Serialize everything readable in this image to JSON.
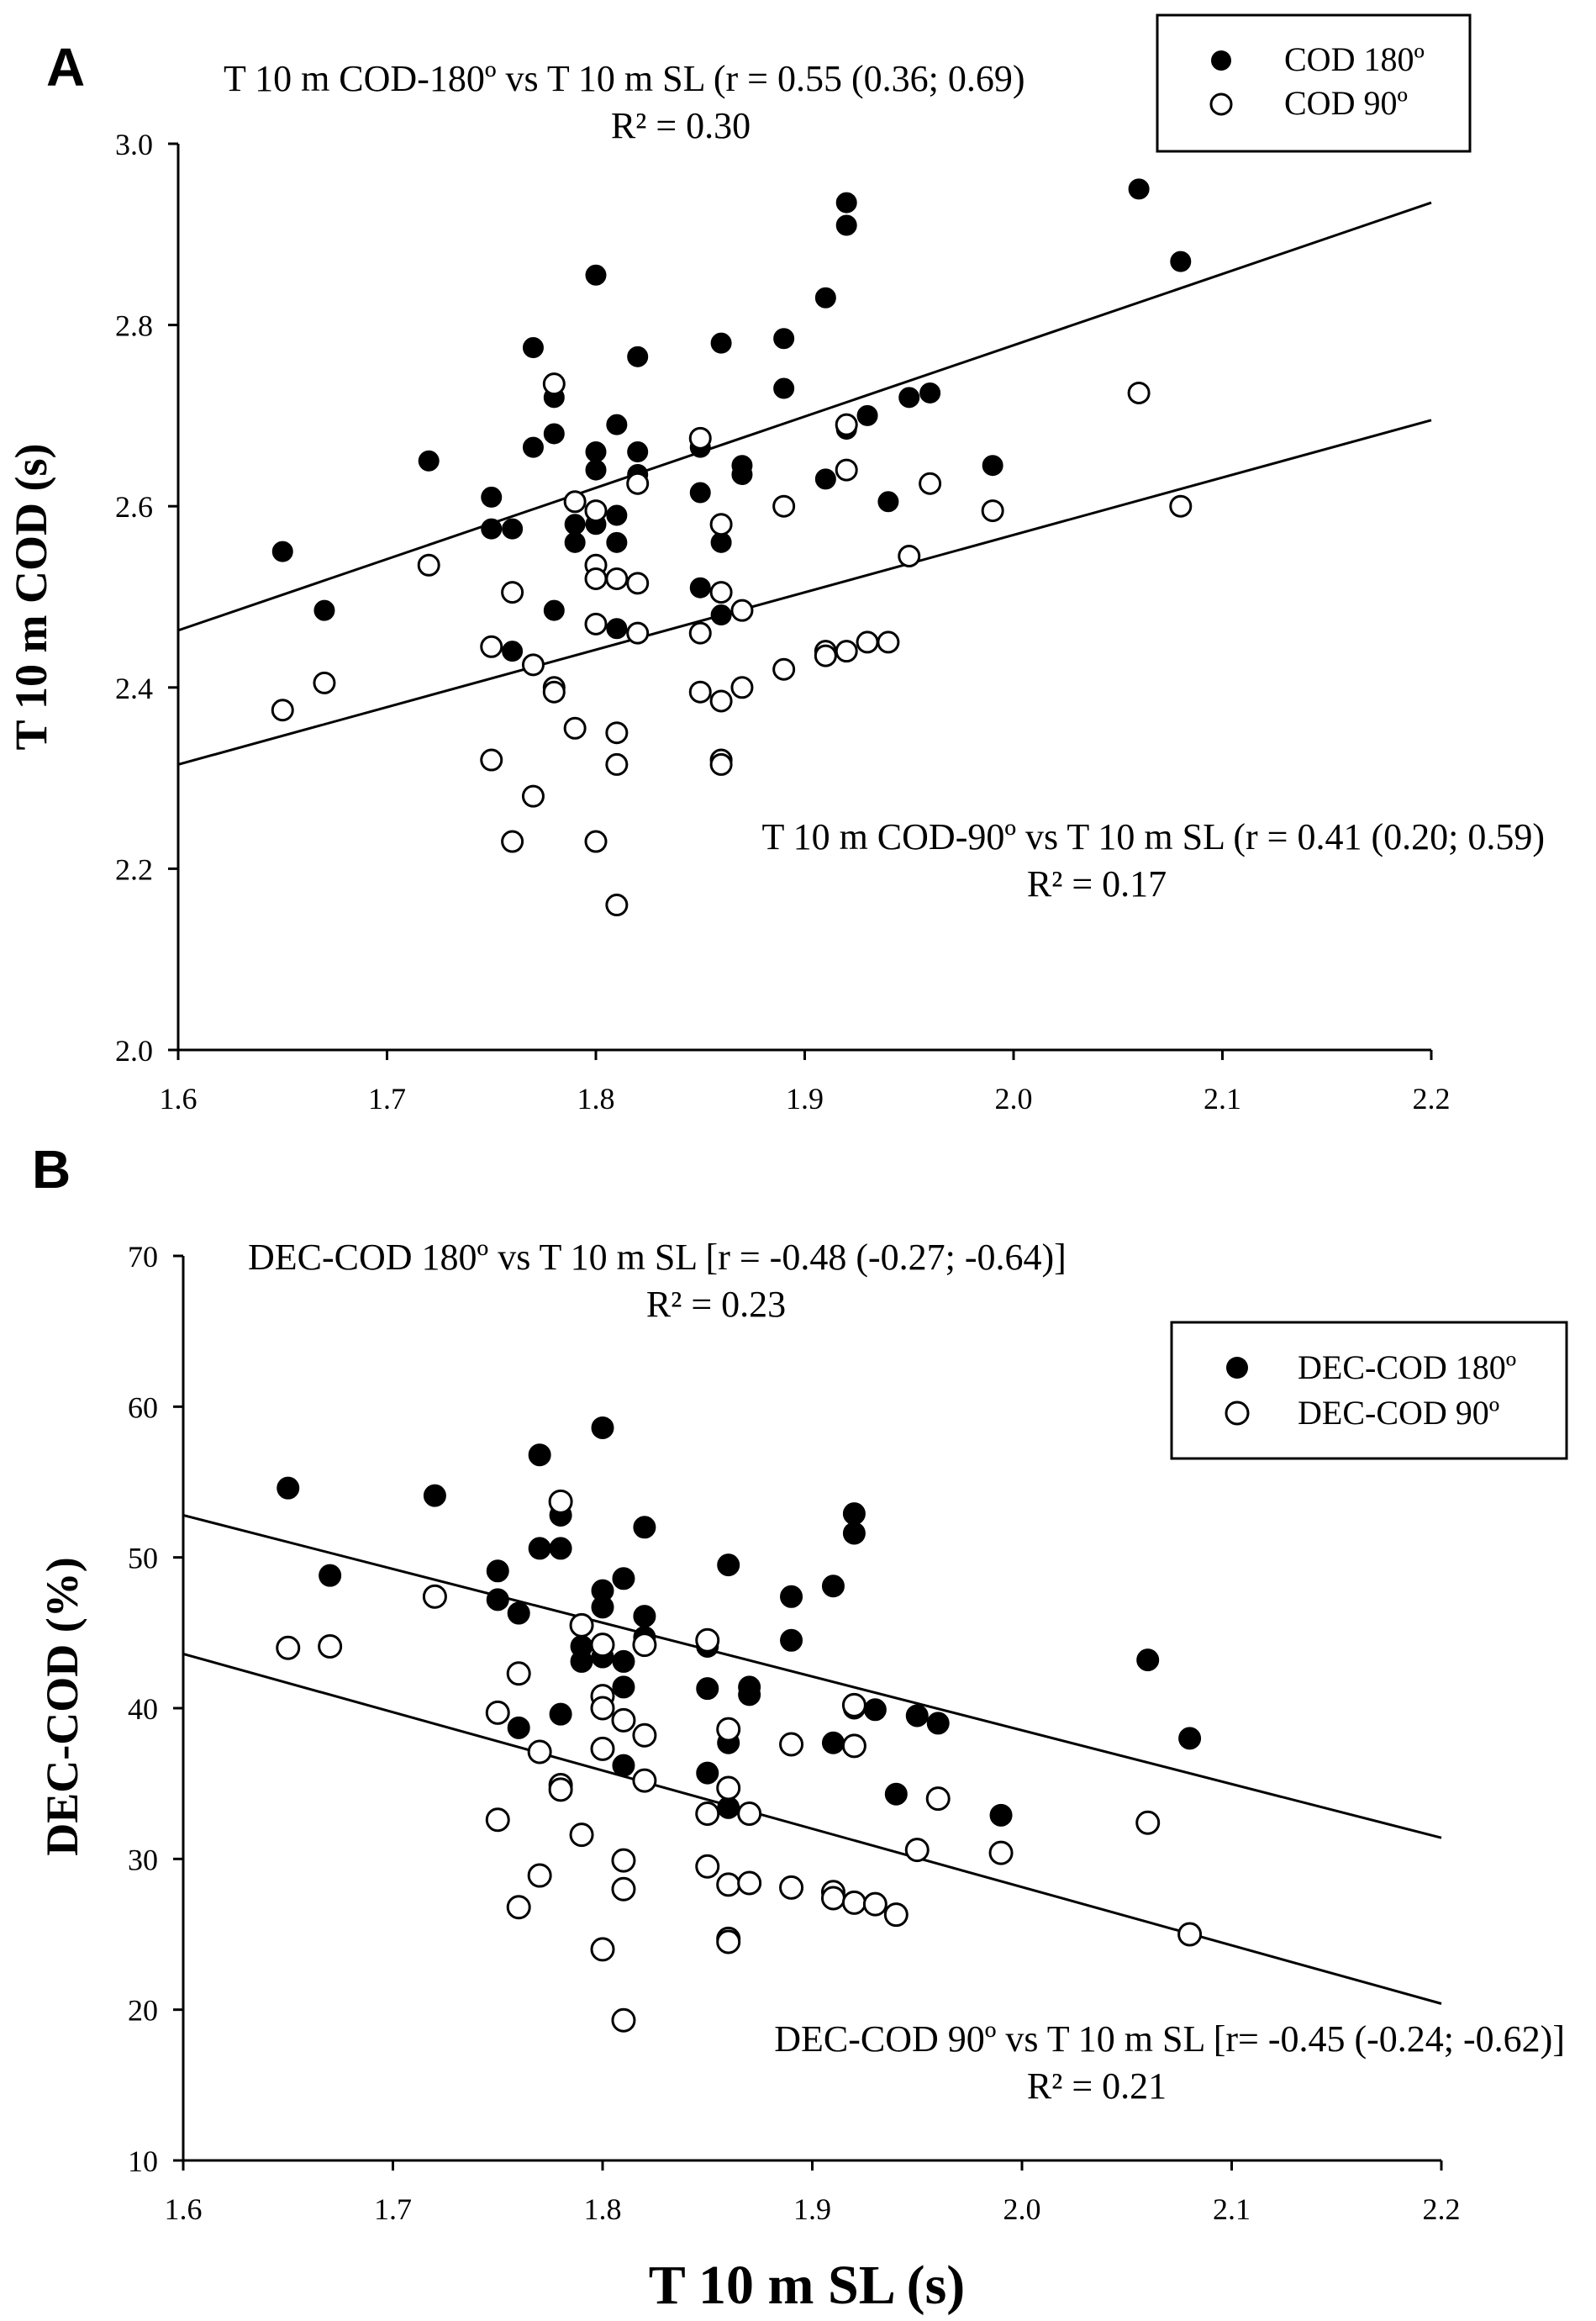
{
  "figure": {
    "x_title": "T 10 m SL (s)",
    "colors": {
      "ink": "#000000",
      "paper": "#ffffff"
    }
  },
  "chart_data": [
    {
      "panel_label": "A",
      "type": "scatter",
      "ylabel": "T 10 m COD (s)",
      "xlabel": "",
      "xlim": [
        1.6,
        2.2
      ],
      "ylim": [
        2.0,
        3.0
      ],
      "x_ticks": [
        "1.6",
        "1.7",
        "1.8",
        "1.9",
        "2.0",
        "2.1",
        "2.2"
      ],
      "y_ticks": [
        "2.0",
        "2.2",
        "2.4",
        "2.6",
        "2.8",
        "3.0"
      ],
      "legend_position": "top-right",
      "annotations": {
        "upper_text": "T 10 m COD-180º vs T 10 m SL (r = 0.55 (0.36; 0.69)",
        "upper_r2": "R² = 0.30",
        "lower_text": "T 10 m COD-90º vs T 10 m SL (r = 0.41 (0.20; 0.59)",
        "lower_r2": "R² = 0.17"
      },
      "series": [
        {
          "name": "COD 180º",
          "marker": "filled-circle",
          "fit_line": [
            [
              1.6,
              2.463
            ],
            [
              2.2,
              2.935
            ]
          ],
          "points": [
            [
              1.65,
              2.55
            ],
            [
              1.67,
              2.485
            ],
            [
              1.72,
              2.65
            ],
            [
              1.75,
              2.61
            ],
            [
              1.75,
              2.575
            ],
            [
              1.76,
              2.575
            ],
            [
              1.76,
              2.44
            ],
            [
              1.77,
              2.775
            ],
            [
              1.77,
              2.665
            ],
            [
              1.78,
              2.72
            ],
            [
              1.78,
              2.68
            ],
            [
              1.78,
              2.485
            ],
            [
              1.79,
              2.58
            ],
            [
              1.79,
              2.56
            ],
            [
              1.8,
              2.855
            ],
            [
              1.8,
              2.66
            ],
            [
              1.8,
              2.64
            ],
            [
              1.8,
              2.58
            ],
            [
              1.81,
              2.69
            ],
            [
              1.81,
              2.59
            ],
            [
              1.81,
              2.56
            ],
            [
              1.81,
              2.465
            ],
            [
              1.82,
              2.765
            ],
            [
              1.82,
              2.66
            ],
            [
              1.82,
              2.635
            ],
            [
              1.85,
              2.665
            ],
            [
              1.85,
              2.615
            ],
            [
              1.85,
              2.51
            ],
            [
              1.86,
              2.78
            ],
            [
              1.86,
              2.56
            ],
            [
              1.86,
              2.48
            ],
            [
              1.87,
              2.645
            ],
            [
              1.87,
              2.635
            ],
            [
              1.89,
              2.785
            ],
            [
              1.89,
              2.73
            ],
            [
              1.91,
              2.83
            ],
            [
              1.91,
              2.63
            ],
            [
              1.92,
              2.935
            ],
            [
              1.92,
              2.91
            ],
            [
              1.92,
              2.685
            ],
            [
              1.93,
              2.7
            ],
            [
              1.94,
              2.605
            ],
            [
              1.95,
              2.72
            ],
            [
              1.96,
              2.725
            ],
            [
              1.99,
              2.645
            ],
            [
              2.06,
              2.95
            ],
            [
              2.08,
              2.87
            ]
          ]
        },
        {
          "name": "COD 90º",
          "marker": "open-circle",
          "fit_line": [
            [
              1.6,
              2.315
            ],
            [
              2.2,
              2.695
            ]
          ],
          "points": [
            [
              1.65,
              2.375
            ],
            [
              1.67,
              2.405
            ],
            [
              1.72,
              2.535
            ],
            [
              1.75,
              2.445
            ],
            [
              1.75,
              2.32
            ],
            [
              1.76,
              2.505
            ],
            [
              1.76,
              2.23
            ],
            [
              1.77,
              2.425
            ],
            [
              1.77,
              2.28
            ],
            [
              1.78,
              2.735
            ],
            [
              1.78,
              2.4
            ],
            [
              1.78,
              2.395
            ],
            [
              1.79,
              2.605
            ],
            [
              1.79,
              2.355
            ],
            [
              1.8,
              2.595
            ],
            [
              1.8,
              2.535
            ],
            [
              1.8,
              2.52
            ],
            [
              1.8,
              2.47
            ],
            [
              1.8,
              2.23
            ],
            [
              1.81,
              2.52
            ],
            [
              1.81,
              2.35
            ],
            [
              1.81,
              2.315
            ],
            [
              1.81,
              2.16
            ],
            [
              1.82,
              2.625
            ],
            [
              1.82,
              2.515
            ],
            [
              1.82,
              2.46
            ],
            [
              1.85,
              2.675
            ],
            [
              1.85,
              2.46
            ],
            [
              1.85,
              2.395
            ],
            [
              1.86,
              2.58
            ],
            [
              1.86,
              2.505
            ],
            [
              1.86,
              2.385
            ],
            [
              1.86,
              2.32
            ],
            [
              1.86,
              2.315
            ],
            [
              1.87,
              2.485
            ],
            [
              1.87,
              2.4
            ],
            [
              1.89,
              2.6
            ],
            [
              1.89,
              2.42
            ],
            [
              1.91,
              2.44
            ],
            [
              1.91,
              2.435
            ],
            [
              1.92,
              2.69
            ],
            [
              1.92,
              2.64
            ],
            [
              1.92,
              2.44
            ],
            [
              1.93,
              2.45
            ],
            [
              1.94,
              2.45
            ],
            [
              1.95,
              2.545
            ],
            [
              1.96,
              2.625
            ],
            [
              1.99,
              2.595
            ],
            [
              2.06,
              2.725
            ],
            [
              2.08,
              2.6
            ]
          ]
        }
      ]
    },
    {
      "panel_label": "B",
      "type": "scatter",
      "ylabel": "DEC-COD (%)",
      "xlabel": "T 10 m SL (s)",
      "xlim": [
        1.6,
        2.2
      ],
      "ylim": [
        10,
        70
      ],
      "x_ticks": [
        "1.6",
        "1.7",
        "1.8",
        "1.9",
        "2.0",
        "2.1",
        "2.2"
      ],
      "y_ticks": [
        "10",
        "20",
        "30",
        "40",
        "50",
        "60",
        "70"
      ],
      "legend_position": "upper-right",
      "annotations": {
        "upper_text": "DEC-COD 180º vs T 10 m SL [r = -0.48 (-0.27; -0.64)]",
        "upper_r2": "R² = 0.23",
        "lower_text": "DEC-COD 90º vs T 10 m SL [r= -0.45 (-0.24; -0.62)]",
        "lower_r2": "R² = 0.21"
      },
      "series": [
        {
          "name": "DEC-COD 180º",
          "marker": "filled-circle",
          "fit_line": [
            [
              1.6,
              52.8
            ],
            [
              2.2,
              31.4
            ]
          ],
          "points": [
            [
              1.65,
              54.6
            ],
            [
              1.67,
              48.8
            ],
            [
              1.72,
              54.1
            ],
            [
              1.75,
              49.1
            ],
            [
              1.75,
              47.2
            ],
            [
              1.76,
              46.3
            ],
            [
              1.76,
              38.7
            ],
            [
              1.77,
              56.8
            ],
            [
              1.77,
              50.6
            ],
            [
              1.78,
              52.8
            ],
            [
              1.78,
              50.6
            ],
            [
              1.78,
              39.6
            ],
            [
              1.79,
              44.1
            ],
            [
              1.79,
              43.1
            ],
            [
              1.8,
              58.6
            ],
            [
              1.8,
              47.8
            ],
            [
              1.8,
              46.7
            ],
            [
              1.8,
              43.4
            ],
            [
              1.81,
              48.6
            ],
            [
              1.81,
              43.1
            ],
            [
              1.81,
              41.4
            ],
            [
              1.81,
              36.2
            ],
            [
              1.82,
              52.0
            ],
            [
              1.82,
              46.1
            ],
            [
              1.82,
              44.7
            ],
            [
              1.85,
              44.1
            ],
            [
              1.85,
              41.3
            ],
            [
              1.85,
              35.7
            ],
            [
              1.86,
              49.5
            ],
            [
              1.86,
              37.7
            ],
            [
              1.86,
              33.4
            ],
            [
              1.87,
              41.4
            ],
            [
              1.87,
              40.9
            ],
            [
              1.89,
              47.4
            ],
            [
              1.89,
              44.5
            ],
            [
              1.91,
              48.1
            ],
            [
              1.91,
              37.7
            ],
            [
              1.92,
              52.9
            ],
            [
              1.92,
              51.6
            ],
            [
              1.92,
              40.0
            ],
            [
              1.93,
              39.9
            ],
            [
              1.94,
              34.3
            ],
            [
              1.95,
              39.5
            ],
            [
              1.96,
              39.0
            ],
            [
              1.99,
              32.9
            ],
            [
              2.06,
              43.2
            ],
            [
              2.08,
              38.0
            ]
          ]
        },
        {
          "name": "DEC-COD 90º",
          "marker": "open-circle",
          "fit_line": [
            [
              1.6,
              43.6
            ],
            [
              2.2,
              20.4
            ]
          ],
          "points": [
            [
              1.65,
              44.0
            ],
            [
              1.67,
              44.1
            ],
            [
              1.72,
              47.4
            ],
            [
              1.75,
              39.7
            ],
            [
              1.75,
              32.6
            ],
            [
              1.76,
              42.3
            ],
            [
              1.76,
              26.8
            ],
            [
              1.77,
              37.1
            ],
            [
              1.77,
              28.9
            ],
            [
              1.78,
              53.7
            ],
            [
              1.78,
              34.9
            ],
            [
              1.78,
              34.6
            ],
            [
              1.79,
              45.5
            ],
            [
              1.79,
              31.6
            ],
            [
              1.8,
              44.2
            ],
            [
              1.8,
              40.8
            ],
            [
              1.8,
              40.0
            ],
            [
              1.8,
              37.3
            ],
            [
              1.8,
              24.0
            ],
            [
              1.81,
              39.2
            ],
            [
              1.81,
              29.9
            ],
            [
              1.81,
              28.0
            ],
            [
              1.81,
              19.3
            ],
            [
              1.82,
              44.2
            ],
            [
              1.82,
              38.2
            ],
            [
              1.82,
              35.2
            ],
            [
              1.85,
              44.5
            ],
            [
              1.85,
              33.0
            ],
            [
              1.85,
              29.5
            ],
            [
              1.86,
              38.6
            ],
            [
              1.86,
              34.7
            ],
            [
              1.86,
              28.3
            ],
            [
              1.86,
              24.7
            ],
            [
              1.86,
              24.5
            ],
            [
              1.87,
              33.0
            ],
            [
              1.87,
              28.4
            ],
            [
              1.89,
              37.6
            ],
            [
              1.89,
              28.1
            ],
            [
              1.91,
              27.8
            ],
            [
              1.91,
              27.4
            ],
            [
              1.92,
              40.2
            ],
            [
              1.92,
              37.5
            ],
            [
              1.92,
              27.1
            ],
            [
              1.93,
              27.0
            ],
            [
              1.94,
              26.3
            ],
            [
              1.95,
              30.6
            ],
            [
              1.96,
              34.0
            ],
            [
              1.99,
              30.4
            ],
            [
              2.06,
              32.4
            ],
            [
              2.08,
              25.0
            ]
          ]
        }
      ]
    }
  ]
}
